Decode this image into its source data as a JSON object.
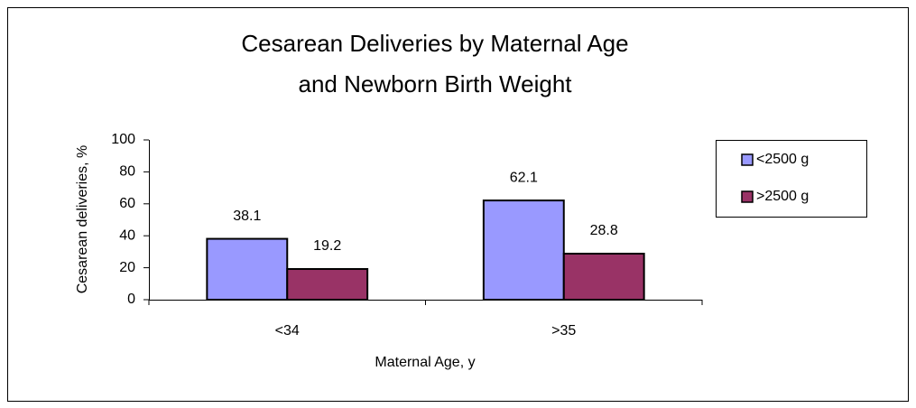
{
  "chart_data": {
    "type": "bar",
    "title": [
      "Cesarean Deliveries by Maternal Age",
      "and Newborn Birth Weight"
    ],
    "x_label": "Maternal Age, y",
    "y_label": "Cesarean deliveries, %",
    "categories": [
      "<34",
      ">35"
    ],
    "series": [
      {
        "name": "<2500 g",
        "color": "#9999ff",
        "values": [
          38.1,
          62.1
        ]
      },
      {
        "name": ">2500 g",
        "color": "#993366",
        "values": [
          19.2,
          28.8
        ]
      }
    ],
    "ylim": [
      0,
      100
    ],
    "yticks": [
      0,
      20,
      40,
      60,
      80,
      100
    ],
    "grid": false,
    "legend": "right"
  }
}
